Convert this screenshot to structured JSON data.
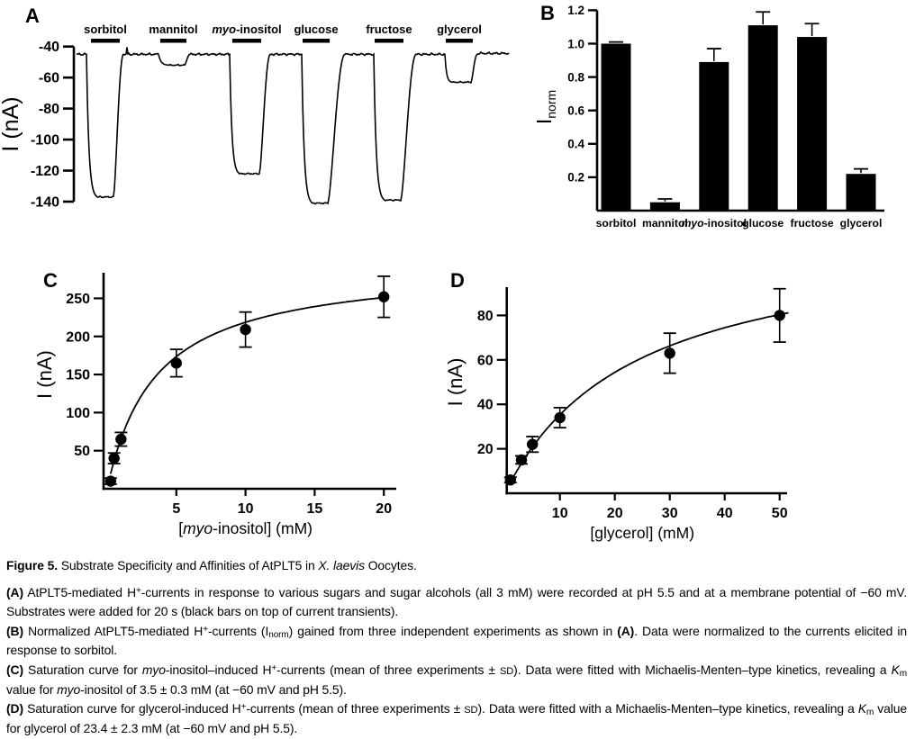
{
  "panels": {
    "A": {
      "label": "A"
    },
    "B": {
      "label": "B"
    },
    "C": {
      "label": "C"
    },
    "D": {
      "label": "D"
    }
  },
  "colors": {
    "ink": "#000000",
    "background": "#ffffff"
  },
  "chart_data": [
    {
      "panel": "A",
      "type": "line",
      "subtype": "current-trace",
      "ylabel": "I (nA)",
      "yticks": [
        -40,
        -60,
        -80,
        -100,
        -120,
        -140
      ],
      "ylim": [
        -148,
        -38
      ],
      "baseline_nA": -45,
      "application_seconds": 20,
      "pulses": [
        {
          "pre_italic": "",
          "label": "sorbitol",
          "peak_nA": -137,
          "bar_span": [
            16,
            48
          ],
          "fall_start": 11,
          "fall_width": 12,
          "trough_end": 41,
          "recovered": 52
        },
        {
          "pre_italic": "",
          "label": "mannitol",
          "peak_nA": -52,
          "bar_span": [
            93,
            122
          ],
          "fall_start": 91,
          "fall_width": 12,
          "trough_end": 120,
          "recovered": 126
        },
        {
          "pre_italic": "myo",
          "label": "-inositol",
          "peak_nA": -122,
          "bar_span": [
            173,
            205
          ],
          "fall_start": 170,
          "fall_width": 11,
          "trough_end": 203,
          "recovered": 215
        },
        {
          "pre_italic": "",
          "label": "glucose",
          "peak_nA": -141,
          "bar_span": [
            251,
            281
          ],
          "fall_start": 250,
          "fall_width": 12,
          "trough_end": 279,
          "recovered": 298
        },
        {
          "pre_italic": "",
          "label": "fructose",
          "peak_nA": -139,
          "bar_span": [
            331,
            363
          ],
          "fall_start": 330,
          "fall_width": 12,
          "trough_end": 360,
          "recovered": 377
        },
        {
          "pre_italic": "",
          "label": "glycerol",
          "peak_nA": -63,
          "bar_span": [
            410,
            440
          ],
          "fall_start": 409,
          "fall_width": 8,
          "trough_end": 438,
          "recovered": 445
        }
      ]
    },
    {
      "panel": "B",
      "type": "bar",
      "ylabel_main": "I",
      "ylabel_sub": "norm",
      "categories": [
        {
          "pre_italic": "",
          "label": "sorbitol"
        },
        {
          "pre_italic": "",
          "label": "mannitol"
        },
        {
          "pre_italic": "myo",
          "label": "-inositol"
        },
        {
          "pre_italic": "",
          "label": "glucose"
        },
        {
          "pre_italic": "",
          "label": "fructose"
        },
        {
          "pre_italic": "",
          "label": "glycerol"
        }
      ],
      "values": [
        1.0,
        0.05,
        0.89,
        1.11,
        1.04,
        0.22
      ],
      "errors": [
        0.01,
        0.02,
        0.08,
        0.08,
        0.08,
        0.03
      ],
      "yticks": [
        0.2,
        0.4,
        0.6,
        0.8,
        1.0,
        1.2
      ],
      "ylim": [
        0,
        1.2
      ]
    },
    {
      "panel": "C",
      "type": "scatter",
      "x": [
        0.25,
        0.5,
        1,
        5,
        10,
        20
      ],
      "y": [
        10,
        40,
        65,
        165,
        209,
        252
      ],
      "yerr": [
        4,
        7,
        9,
        18,
        23,
        27
      ],
      "fit": {
        "model": "Michaelis-Menten",
        "km_mM": 3.5,
        "km_sd_mM": 0.3,
        "imax_nA": 295,
        "draw_from": 0.25
      },
      "xlabel_segments": [
        {
          "t": "[",
          "i": false
        },
        {
          "t": "myo",
          "i": true
        },
        {
          "t": "-inositol] (mM)",
          "i": false
        }
      ],
      "ylabel": "I (nA)",
      "xticks": [
        5,
        10,
        15,
        20
      ],
      "yticks": [
        50,
        100,
        150,
        200,
        250
      ],
      "xlim": [
        0,
        20.6
      ],
      "ylim": [
        0,
        285
      ]
    },
    {
      "panel": "D",
      "type": "scatter",
      "x": [
        1,
        3,
        5,
        10,
        30,
        50
      ],
      "y": [
        6,
        15,
        22,
        34,
        63,
        80
      ],
      "yerr": [
        1.2,
        1.8,
        3.5,
        4.5,
        9,
        12
      ],
      "fit": {
        "model": "Michaelis-Menten",
        "km_mM": 23.4,
        "km_sd_mM": 2.3,
        "imax_nA": 118,
        "draw_from": 0.8
      },
      "xlabel_segments": [
        {
          "t": "[glycerol] (mM)",
          "i": false
        }
      ],
      "ylabel": "I (nA)",
      "xticks": [
        10,
        20,
        30,
        40,
        50
      ],
      "yticks": [
        20,
        40,
        60,
        80
      ],
      "xlim": [
        0,
        52
      ],
      "ylim": [
        0,
        95
      ]
    }
  ],
  "caption": {
    "paragraphs": [
      {
        "name": "caption-title",
        "cls": "fig-title",
        "segments": [
          {
            "t": "Figure 5.",
            "b": true
          },
          {
            "t": "  Substrate Specificity and Affinities of AtPLT5 in "
          },
          {
            "t": "X. laevis",
            "i": true
          },
          {
            "t": " Oocytes."
          }
        ]
      },
      {
        "name": "caption-panel-a",
        "segments": [
          {
            "t": "(A)",
            "b": true
          },
          {
            "t": " AtPLT5-mediated H"
          },
          {
            "t": "+",
            "sup": true
          },
          {
            "t": "-currents in response to various sugars and sugar alcohols (all 3 mM) were recorded at pH 5.5 and at a membrane potential of −60 mV. Substrates were added for 20 s (black bars on top of current transients)."
          }
        ]
      },
      {
        "name": "caption-panel-b",
        "segments": [
          {
            "t": "(B)",
            "b": true
          },
          {
            "t": " Normalized AtPLT5-mediated H"
          },
          {
            "t": "+",
            "sup": true
          },
          {
            "t": "-currents (I"
          },
          {
            "t": "norm",
            "sub": true
          },
          {
            "t": ") gained from three independent experiments as shown in "
          },
          {
            "t": "(A)",
            "b": true
          },
          {
            "t": ". Data were normalized to the currents elicited in response to sorbitol."
          }
        ]
      },
      {
        "name": "caption-panel-c",
        "segments": [
          {
            "t": "(C)",
            "b": true
          },
          {
            "t": " Saturation curve for "
          },
          {
            "t": "myo",
            "i": true
          },
          {
            "t": "-inositol–induced H"
          },
          {
            "t": "+",
            "sup": true
          },
          {
            "t": "-currents (mean of three experiments ± "
          },
          {
            "t": "SD",
            "sc": true
          },
          {
            "t": "). Data were fitted with Michaelis-Menten–type kinetics, revealing a "
          },
          {
            "t": "K",
            "i": true
          },
          {
            "t": "m",
            "sub": true
          },
          {
            "t": " value for "
          },
          {
            "t": "myo",
            "i": true
          },
          {
            "t": "-inositol of 3.5 ± 0.3 mM (at −60 mV and pH 5.5)."
          }
        ]
      },
      {
        "name": "caption-panel-d",
        "segments": [
          {
            "t": "(D)",
            "b": true
          },
          {
            "t": " Saturation curve for glycerol-induced H"
          },
          {
            "t": "+",
            "sup": true
          },
          {
            "t": "-currents (mean of three experiments ± "
          },
          {
            "t": "SD",
            "sc": true
          },
          {
            "t": "). Data were fitted with a Michaelis-Menten–type kinetics, revealing a "
          },
          {
            "t": "K",
            "i": true
          },
          {
            "t": "m",
            "sub": true
          },
          {
            "t": " value for glycerol of 23.4 ± 2.3 mM (at −60 mV and pH 5.5)."
          }
        ]
      }
    ]
  }
}
